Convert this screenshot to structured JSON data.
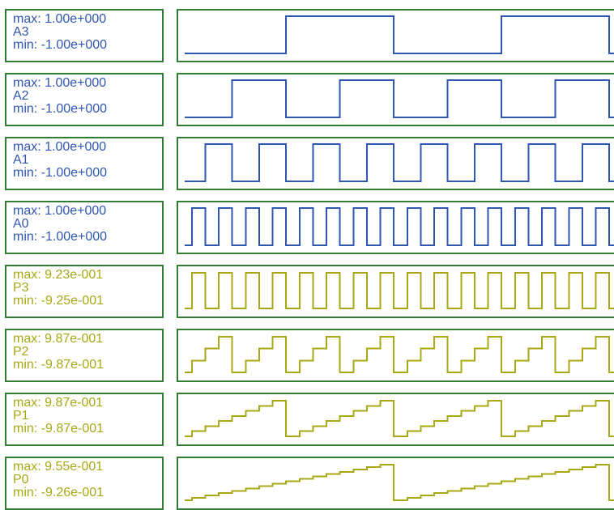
{
  "channels": [
    {
      "name": "A3",
      "max": "max: 1.00e+000",
      "min": "min: -1.00e+000",
      "color": "#2f56b0"
    },
    {
      "name": "A2",
      "max": "max: 1.00e+000",
      "min": "min: -1.00e+000",
      "color": "#2f56b0"
    },
    {
      "name": "A1",
      "max": "max: 1.00e+000",
      "min": "min: -1.00e+000",
      "color": "#2f56b0"
    },
    {
      "name": "A0",
      "max": "max: 1.00e+000",
      "min": "min: -1.00e+000",
      "color": "#2f56b0"
    },
    {
      "name": "P3",
      "max": "max: 9.23e-001",
      "min": "min: -9.25e-001",
      "color": "#a8a814"
    },
    {
      "name": "P2",
      "max": "max: 9.87e-001",
      "min": "min: -9.87e-001",
      "color": "#a8a814"
    },
    {
      "name": "P1",
      "max": "max: 9.87e-001",
      "min": "min: -9.87e-001",
      "color": "#a8a814"
    },
    {
      "name": "P0",
      "max": "max: 9.55e-001",
      "min": "min: -9.26e-001",
      "color": "#a8a814"
    }
  ],
  "border_color": "#2e7d32"
}
